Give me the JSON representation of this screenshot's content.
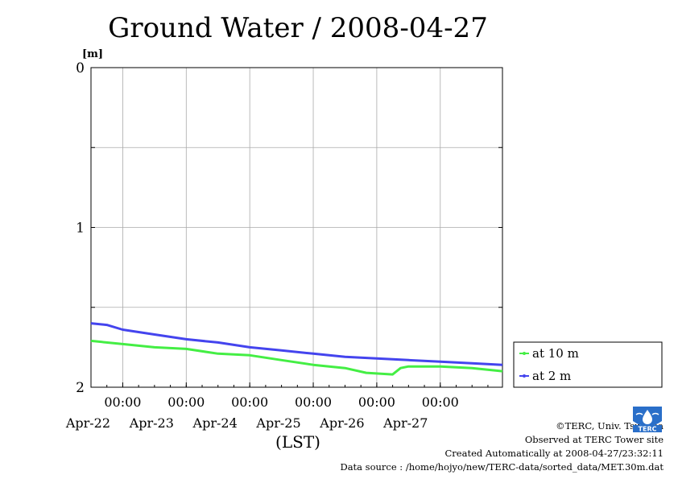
{
  "chart_data": {
    "type": "line",
    "title": "Ground Water / 2008-04-27",
    "xlabel": "(LST)",
    "ylabel": "[m]",
    "ylim": [
      0,
      2
    ],
    "y_inverted": true,
    "y_ticks": [
      "0",
      "1",
      "2"
    ],
    "xlim": [
      "2008-04-21T12:00",
      "2008-04-27T23:30"
    ],
    "x_ticks": [
      {
        "date": "2008-04-22T00:00",
        "time": "00:00",
        "day": "Apr-22"
      },
      {
        "date": "2008-04-23T00:00",
        "time": "00:00",
        "day": "Apr-23"
      },
      {
        "date": "2008-04-24T00:00",
        "time": "00:00",
        "day": "Apr-24"
      },
      {
        "date": "2008-04-25T00:00",
        "time": "00:00",
        "day": "Apr-25"
      },
      {
        "date": "2008-04-26T00:00",
        "time": "00:00",
        "day": "Apr-26"
      },
      {
        "date": "2008-04-27T00:00",
        "time": "00:00",
        "day": "Apr-27"
      }
    ],
    "grid": true,
    "legend_position": "right",
    "series": [
      {
        "name": "at 10 m",
        "color": "#44ee44",
        "points": [
          [
            "2008-04-21T12:00",
            1.71
          ],
          [
            "2008-04-22T00:00",
            1.73
          ],
          [
            "2008-04-22T12:00",
            1.75
          ],
          [
            "2008-04-23T00:00",
            1.76
          ],
          [
            "2008-04-23T12:00",
            1.79
          ],
          [
            "2008-04-24T00:00",
            1.8
          ],
          [
            "2008-04-24T12:00",
            1.83
          ],
          [
            "2008-04-25T00:00",
            1.86
          ],
          [
            "2008-04-25T12:00",
            1.88
          ],
          [
            "2008-04-25T20:00",
            1.91
          ],
          [
            "2008-04-26T06:00",
            1.92
          ],
          [
            "2008-04-26T09:00",
            1.88
          ],
          [
            "2008-04-26T12:00",
            1.87
          ],
          [
            "2008-04-27T00:00",
            1.87
          ],
          [
            "2008-04-27T12:00",
            1.88
          ],
          [
            "2008-04-27T23:30",
            1.9
          ]
        ]
      },
      {
        "name": "at 2 m",
        "color": "#4444ee",
        "points": [
          [
            "2008-04-21T12:00",
            1.6
          ],
          [
            "2008-04-21T18:00",
            1.61
          ],
          [
            "2008-04-22T00:00",
            1.64
          ],
          [
            "2008-04-22T12:00",
            1.67
          ],
          [
            "2008-04-23T00:00",
            1.7
          ],
          [
            "2008-04-23T12:00",
            1.72
          ],
          [
            "2008-04-24T00:00",
            1.75
          ],
          [
            "2008-04-24T12:00",
            1.77
          ],
          [
            "2008-04-25T00:00",
            1.79
          ],
          [
            "2008-04-25T12:00",
            1.81
          ],
          [
            "2008-04-26T00:00",
            1.82
          ],
          [
            "2008-04-26T12:00",
            1.83
          ],
          [
            "2008-04-27T00:00",
            1.84
          ],
          [
            "2008-04-27T12:00",
            1.85
          ],
          [
            "2008-04-27T23:30",
            1.86
          ]
        ]
      }
    ]
  },
  "footer": {
    "copyright": "©TERC, Univ. Tsukuba",
    "observed": "Observed at TERC Tower site",
    "created": "Created Automatically at 2008-04-27/23:32:11",
    "source": "Data source : /home/hojyo/new/TERC-data/sorted_data/MET.30m.dat"
  },
  "logo": {
    "text": "TERC",
    "color": "#2a6fc9"
  }
}
